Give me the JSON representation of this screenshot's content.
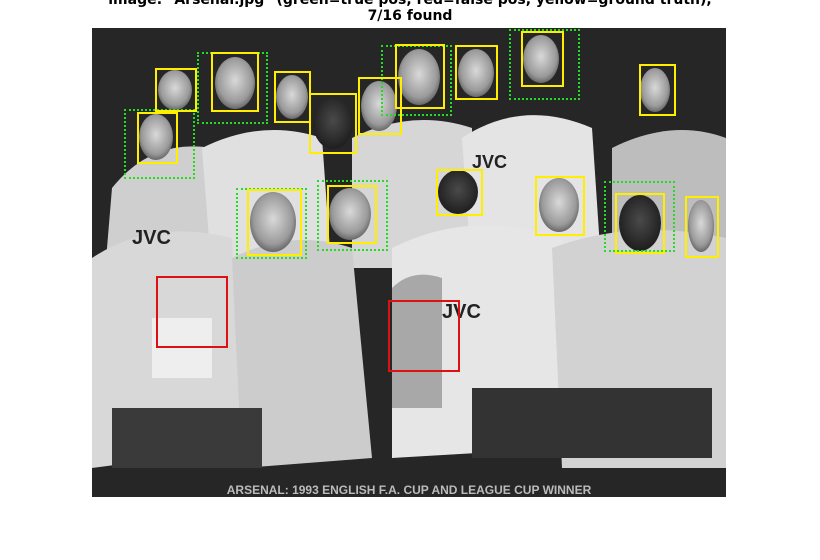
{
  "title_line1": "image: \"Arsenal.jpg\" (green=true pos, red=false pos, yellow=ground truth),",
  "title_line2": "7/16 found",
  "photo_caption": "ARSENAL: 1993 ENGLISH F.A. CUP AND LEAGUE CUP WINNER",
  "photo_shirt_text": "JVC",
  "legend_colors": {
    "true_pos": "#22dd22",
    "false_pos": "#dd1111",
    "ground_truth": "#ffee00"
  },
  "detections": {
    "ground_truth_count": 16,
    "true_positive_count": 7,
    "false_positive_count": 2
  }
}
